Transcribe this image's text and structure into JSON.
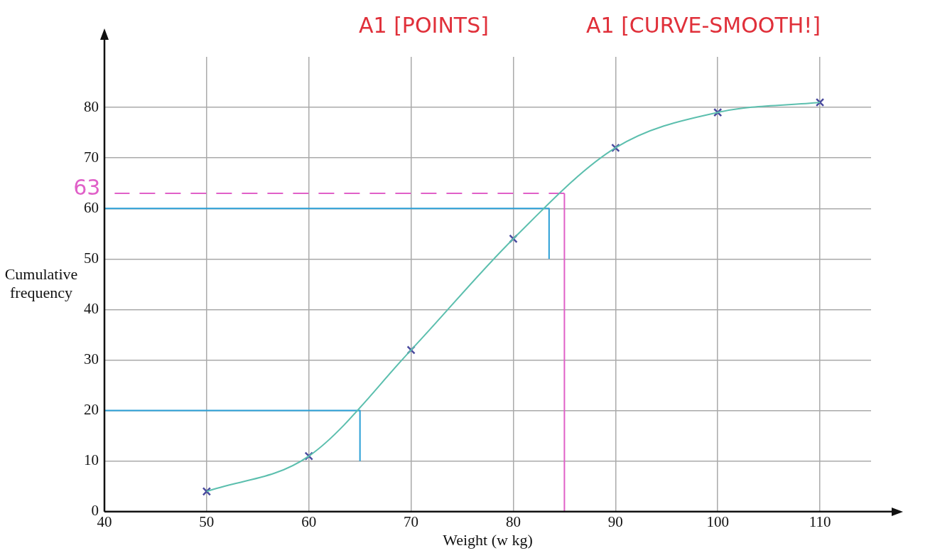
{
  "chart_data": {
    "type": "line",
    "xlabel": "Weight (w kg)",
    "ylabel": "Cumulative frequency",
    "xlim": [
      40,
      115
    ],
    "xticks": [
      40,
      50,
      60,
      70,
      80,
      90,
      100,
      110
    ],
    "ylim": [
      0,
      90
    ],
    "yticks": [
      0,
      10,
      20,
      30,
      40,
      50,
      60,
      70,
      80
    ],
    "grid": true,
    "legend": false,
    "series": [
      {
        "type": "line",
        "color": "#5cbfae",
        "marker": "none",
        "line_style": "solid",
        "x": [
          50,
          60,
          70,
          80,
          90,
          100,
          110
        ],
        "values": [
          4,
          11,
          32,
          54,
          72,
          79,
          81
        ]
      },
      {
        "type": "scatter",
        "color": "#4a4a9e",
        "marker": "cross",
        "x": [
          50,
          60,
          70,
          80,
          90,
          100,
          110
        ],
        "values": [
          4,
          11,
          32,
          54,
          72,
          79,
          81
        ]
      },
      {
        "type": "line",
        "color": "#2a9fd6",
        "marker": "none",
        "line_style": "solid",
        "x": [
          40,
          83.5,
          83.5
        ],
        "values": [
          60,
          60,
          50
        ]
      },
      {
        "type": "line",
        "color": "#2a9fd6",
        "marker": "none",
        "line_style": "solid",
        "x": [
          40,
          65,
          65
        ],
        "values": [
          20,
          20,
          10
        ]
      },
      {
        "type": "line",
        "color": "#e060c8",
        "marker": "none",
        "line_style": "solid",
        "x": [
          85,
          85
        ],
        "values": [
          0,
          63
        ]
      },
      {
        "type": "line",
        "color": "#e060c8",
        "marker": "none",
        "line_style": "dashed",
        "x": [
          85,
          41
        ],
        "values": [
          63,
          63
        ]
      }
    ],
    "annotations": [
      "A1 [POINTS]",
      "A1 [CURVE-SMOOTH!]",
      {
        "text": "63",
        "x": 41,
        "y": 63
      }
    ]
  }
}
